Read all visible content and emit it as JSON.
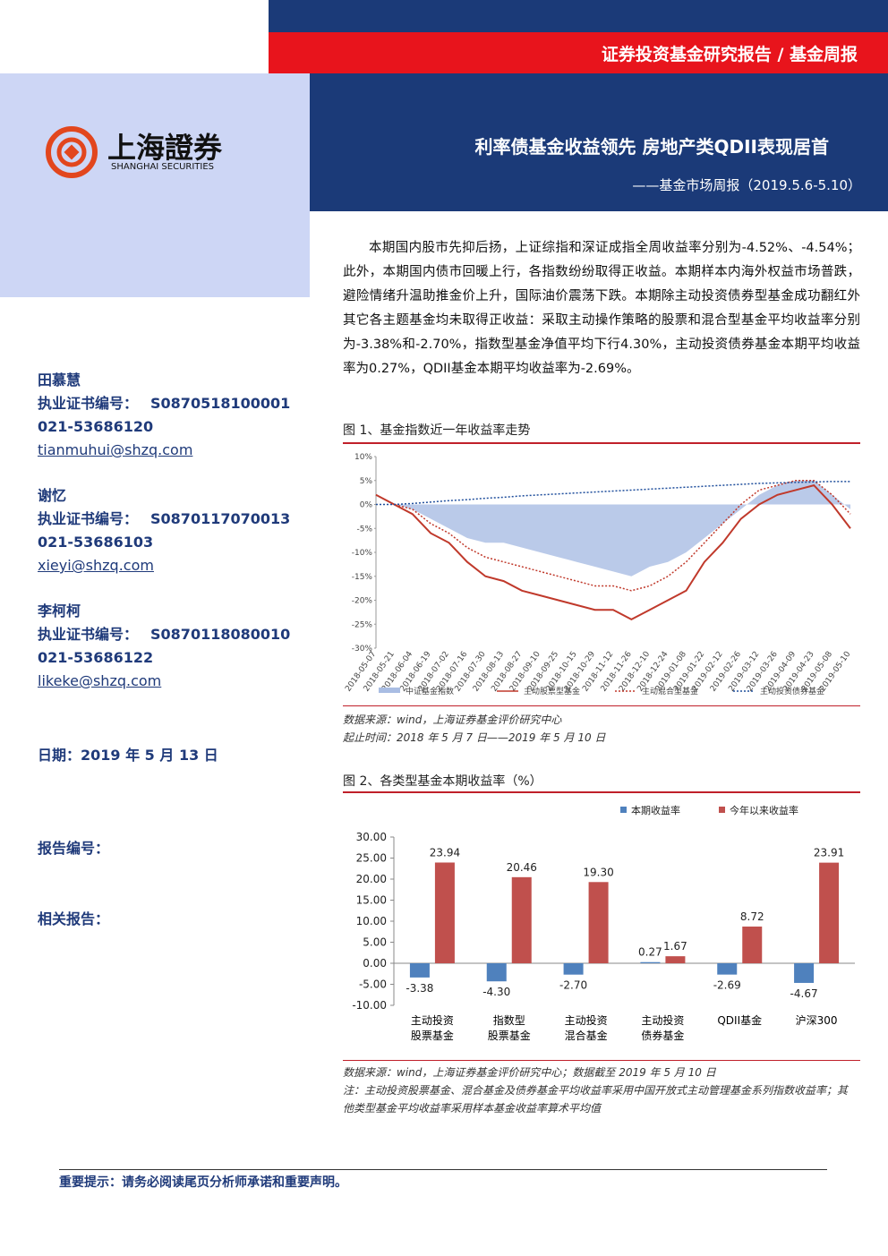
{
  "header": {
    "series_name": "证券投资基金研究报告 / 基金周报",
    "logo_cn": "上海證券",
    "logo_en": "SHANGHAI SECURITIES",
    "title": "利率债基金收益领先 房地产类QDII表现居首",
    "subtitle": "——基金市场周报（2019.5.6-5.10）"
  },
  "analysts": [
    {
      "name": "田慕慧",
      "cert_label": "执业证书编号：",
      "cert": "S0870518100001",
      "phone": "021-53686120",
      "email": "tianmuhui@shzq.com"
    },
    {
      "name": "谢忆",
      "cert_label": "执业证书编号：",
      "cert": "S0870117070013",
      "phone": "021-53686103",
      "email": "xieyi@shzq.com"
    },
    {
      "name": "李柯柯",
      "cert_label": "执业证书编号：",
      "cert": "S0870118080010",
      "phone": "021-53686122",
      "email": "likeke@shzq.com"
    }
  ],
  "date": "日期：2019 年 5 月 13 日",
  "report_no_label": "报告编号：",
  "related_label": "相关报告：",
  "summary": "本期国内股市先抑后扬，上证综指和深证成指全周收益率分别为-4.52%、-4.54%；此外，本期国内债市回暖上行，各指数纷纷取得正收益。本期样本内海外权益市场普跌，避险情绪升温助推金价上升，国际油价震荡下跌。本期除主动投资债券型基金成功翻红外其它各主题基金均未取得正收益：采取主动操作策略的股票和混合型基金平均收益率分别为-3.38%和-2.70%，指数型基金净值平均下行4.30%，主动投资债券基金本期平均收益率为0.27%，QDII基金本期平均收益率为-2.69%。",
  "chart_data": [
    {
      "type": "line",
      "title": "图 1、基金指数近一年收益率走势",
      "categories": [
        "2018-05-07",
        "2018-05-21",
        "2018-06-04",
        "2018-06-19",
        "2018-07-02",
        "2018-07-16",
        "2018-07-30",
        "2018-08-13",
        "2018-08-27",
        "2018-09-10",
        "2018-09-25",
        "2018-10-15",
        "2018-10-29",
        "2018-11-12",
        "2018-11-26",
        "2018-12-10",
        "2018-12-24",
        "2019-01-08",
        "2019-01-22",
        "2019-02-12",
        "2019-02-26",
        "2019-03-12",
        "2019-03-26",
        "2019-04-09",
        "2019-04-23",
        "2019-05-08",
        "2019-05-10"
      ],
      "series": [
        {
          "name": "中证基金指数",
          "color": "#a9bde3",
          "style": "area",
          "values": [
            0,
            0,
            -1,
            -3,
            -5,
            -7,
            -8,
            -8,
            -9,
            -10,
            -11,
            -12,
            -13,
            -14,
            -15,
            -13,
            -12,
            -10,
            -7,
            -4,
            -1,
            2,
            4,
            5,
            5,
            2,
            -1
          ]
        },
        {
          "name": "主动股票型基金",
          "color": "#c0392b",
          "style": "solid",
          "values": [
            2,
            0,
            -2,
            -6,
            -8,
            -12,
            -15,
            -16,
            -18,
            -19,
            -20,
            -21,
            -22,
            -22,
            -24,
            -22,
            -20,
            -18,
            -12,
            -8,
            -3,
            0,
            2,
            3,
            4,
            0,
            -5
          ]
        },
        {
          "name": "主动混合型基金",
          "color": "#c0392b",
          "style": "dotted",
          "values": [
            2,
            0,
            -1,
            -4,
            -6,
            -9,
            -11,
            -12,
            -13,
            -14,
            -15,
            -16,
            -17,
            -17,
            -18,
            -17,
            -15,
            -12,
            -8,
            -4,
            0,
            3,
            4,
            5,
            5,
            2,
            -2
          ]
        },
        {
          "name": "主动投资债券基金",
          "color": "#1f4e9c",
          "style": "dotted",
          "values": [
            0,
            0,
            0.2,
            0.5,
            0.8,
            1,
            1.3,
            1.5,
            1.8,
            2,
            2.2,
            2.4,
            2.6,
            2.8,
            3,
            3.2,
            3.4,
            3.6,
            3.8,
            4,
            4.2,
            4.4,
            4.5,
            4.6,
            4.7,
            4.8,
            4.8
          ]
        }
      ],
      "ylim": [
        -30,
        10
      ],
      "yticks": [
        {
          "value": -30,
          "label": "-30%"
        },
        {
          "value": -25,
          "label": "-25%"
        },
        {
          "value": -20,
          "label": "-20%"
        },
        {
          "value": -15,
          "label": "-15%"
        },
        {
          "value": -10,
          "label": "-10%"
        },
        {
          "value": -5,
          "label": "-5%"
        },
        {
          "value": 0,
          "label": "0%"
        },
        {
          "value": 5,
          "label": "5%"
        },
        {
          "value": 10,
          "label": "10%"
        }
      ],
      "notes": [
        "数据来源：wind，上海证券基金评价研究中心",
        "起止时间：2018 年 5 月 7 日——2019 年 5 月 10 日"
      ]
    },
    {
      "type": "bar",
      "title": "图 2、各类型基金本期收益率（%）",
      "categories": [
        "主动投资\n股票基金",
        "指数型\n股票基金",
        "主动投资\n混合基金",
        "主动投资\n债券基金",
        "QDII基金",
        "沪深300"
      ],
      "series": [
        {
          "name": "本期收益率",
          "color": "#4f81bd",
          "values": [
            -3.38,
            -4.3,
            -2.7,
            0.27,
            -2.69,
            -4.67
          ],
          "value_labels": [
            "-3.38",
            "-4.30",
            "-2.70",
            "0.27",
            "-2.69",
            "-4.67"
          ]
        },
        {
          "name": "今年以来收益率",
          "color": "#c0504d",
          "values": [
            23.94,
            20.46,
            19.3,
            1.67,
            8.72,
            23.91
          ],
          "value_labels": [
            "23.94",
            "20.46",
            "19.30",
            "1.67",
            "8.72",
            "23.91"
          ]
        }
      ],
      "ylim": [
        -10,
        30
      ],
      "yticks": [
        {
          "value": -10,
          "label": "-10.00"
        },
        {
          "value": -5,
          "label": "-5.00"
        },
        {
          "value": 0,
          "label": "0.00"
        },
        {
          "value": 5,
          "label": "5.00"
        },
        {
          "value": 10,
          "label": "10.00"
        },
        {
          "value": 15,
          "label": "15.00"
        },
        {
          "value": 20,
          "label": "20.00"
        },
        {
          "value": 25,
          "label": "25.00"
        },
        {
          "value": 30,
          "label": "30.00"
        }
      ],
      "legend": "top-right",
      "notes": [
        "数据来源：wind，上海证券基金评价研究中心；数据截至 2019 年 5 月 10 日",
        "注：主动投资股票基金、混合基金及债券基金平均收益率采用中国开放式主动管理基金系列指数收益率；其他类型基金平均收益率采用样本基金收益率算术平均值"
      ]
    }
  ],
  "footer": "重要提示：请务必阅读尾页分析师承诺和重要声明。"
}
